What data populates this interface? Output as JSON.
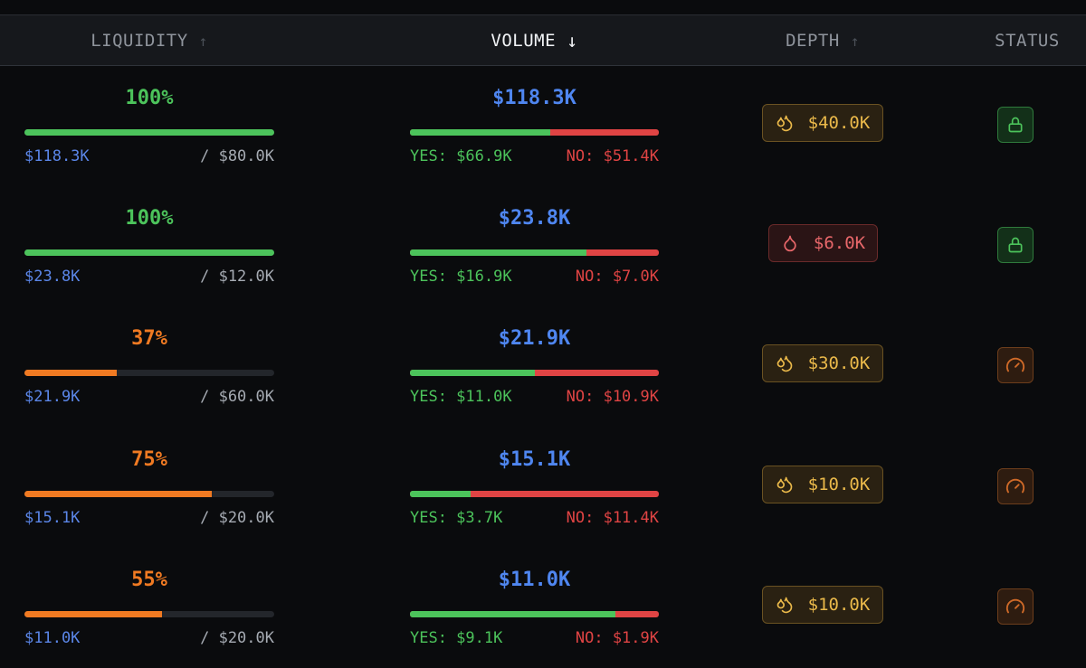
{
  "colors": {
    "green": "#4cc35b",
    "orange": "#f07a22",
    "blue": "#4f86f0",
    "red": "#e04444",
    "amber": "#eab94a"
  },
  "header": {
    "columns": [
      {
        "label": "LIQUIDITY",
        "sort_icon": "arrow-up-icon"
      },
      {
        "label": "VOLUME",
        "sort_icon": "arrow-down-icon"
      },
      {
        "label": "DEPTH",
        "sort_icon": "arrow-up-icon"
      },
      {
        "label": "STATUS"
      }
    ]
  },
  "rows": [
    {
      "liquidity": {
        "percent": "100%",
        "fill": 1.0,
        "color": "#4cc35b",
        "current": "$118.3K",
        "target": "/ $80.0K"
      },
      "volume": {
        "total": "$118.3K",
        "yes_share": 0.565,
        "yes": "YES: $66.9K",
        "no": "NO: $51.4K"
      },
      "depth": {
        "value": "$40.0K",
        "level": "good",
        "icon": "droplets-icon"
      },
      "status": {
        "icon": "lock-icon",
        "kind": "locked"
      }
    },
    {
      "liquidity": {
        "percent": "100%",
        "fill": 1.0,
        "color": "#4cc35b",
        "current": "$23.8K",
        "target": "/ $12.0K"
      },
      "volume": {
        "total": "$23.8K",
        "yes_share": 0.71,
        "yes": "YES: $16.9K",
        "no": "NO: $7.0K"
      },
      "depth": {
        "value": "$6.0K",
        "level": "bad",
        "icon": "droplet-icon"
      },
      "status": {
        "icon": "lock-icon",
        "kind": "locked"
      }
    },
    {
      "liquidity": {
        "percent": "37%",
        "fill": 0.37,
        "color": "#f07a22",
        "current": "$21.9K",
        "target": "/ $60.0K"
      },
      "volume": {
        "total": "$21.9K",
        "yes_share": 0.502,
        "yes": "YES: $11.0K",
        "no": "NO: $10.9K"
      },
      "depth": {
        "value": "$30.0K",
        "level": "good",
        "icon": "droplets-icon"
      },
      "status": {
        "icon": "gauge-icon",
        "kind": "gauge"
      }
    },
    {
      "liquidity": {
        "percent": "75%",
        "fill": 0.75,
        "color": "#f07a22",
        "current": "$15.1K",
        "target": "/ $20.0K"
      },
      "volume": {
        "total": "$15.1K",
        "yes_share": 0.245,
        "yes": "YES: $3.7K",
        "no": "NO: $11.4K"
      },
      "depth": {
        "value": "$10.0K",
        "level": "good",
        "icon": "droplets-icon"
      },
      "status": {
        "icon": "gauge-icon",
        "kind": "gauge"
      }
    },
    {
      "liquidity": {
        "percent": "55%",
        "fill": 0.55,
        "color": "#f07a22",
        "current": "$11.0K",
        "target": "/ $20.0K"
      },
      "volume": {
        "total": "$11.0K",
        "yes_share": 0.827,
        "yes": "YES: $9.1K",
        "no": "NO: $1.9K"
      },
      "depth": {
        "value": "$10.0K",
        "level": "good",
        "icon": "droplets-icon"
      },
      "status": {
        "icon": "gauge-icon",
        "kind": "gauge"
      }
    }
  ]
}
